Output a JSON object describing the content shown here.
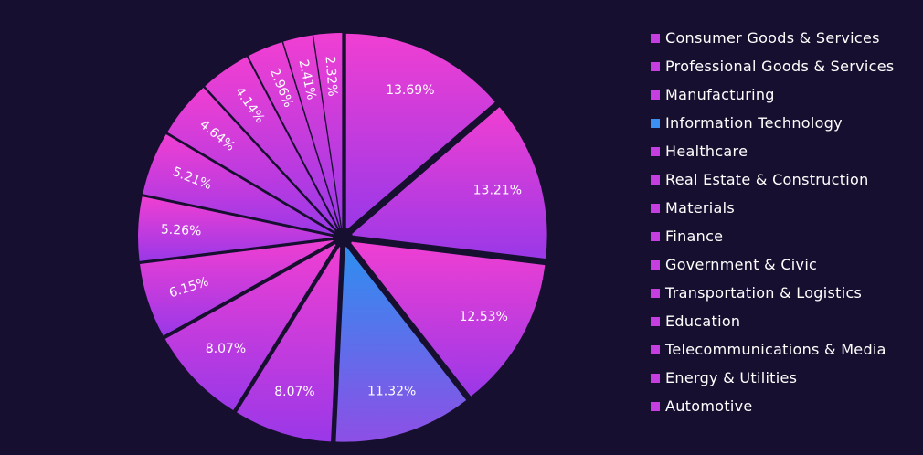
{
  "chart_data": {
    "type": "pie",
    "title": "",
    "legend_position": "right",
    "colors": {
      "background": "#170f2f",
      "gradient_top": "#f03fd2",
      "gradient_bottom": "#9a38e8",
      "it_gradient_top": "#2d8ff0",
      "it_gradient_bottom": "#8d4fe6",
      "swatch_default": "#c43ee0",
      "swatch_it": "#3a8ff0",
      "label_text": "#ffffff",
      "legend_text": "#ffffff"
    },
    "slices": [
      {
        "category": "Consumer Goods & Services",
        "value": 13.69,
        "label": "13.69%"
      },
      {
        "category": "Professional Goods & Services",
        "value": 13.21,
        "label": "13.21%"
      },
      {
        "category": "Manufacturing",
        "value": 12.53,
        "label": "12.53%"
      },
      {
        "category": "Information Technology",
        "value": 11.32,
        "label": "11.32%"
      },
      {
        "category": "Healthcare",
        "value": 8.07,
        "label": "8.07%"
      },
      {
        "category": "Real Estate & Construction",
        "value": 8.07,
        "label": "8.07%"
      },
      {
        "category": "Materials",
        "value": 6.15,
        "label": "6.15%"
      },
      {
        "category": "Finance",
        "value": 5.26,
        "label": "5.26%"
      },
      {
        "category": "Government & Civic",
        "value": 5.21,
        "label": "5.21%"
      },
      {
        "category": "Transportation & Logistics",
        "value": 4.64,
        "label": "4.64%"
      },
      {
        "category": "Education",
        "value": 4.14,
        "label": "4.14%"
      },
      {
        "category": "Telecommunications & Media",
        "value": 2.96,
        "label": "2.96%"
      },
      {
        "category": "Energy & Utilities",
        "value": 2.41,
        "label": "2.41%"
      },
      {
        "category": "Automotive",
        "value": 2.32,
        "label": "2.32%"
      }
    ],
    "highlighted_category": "Information Technology"
  }
}
